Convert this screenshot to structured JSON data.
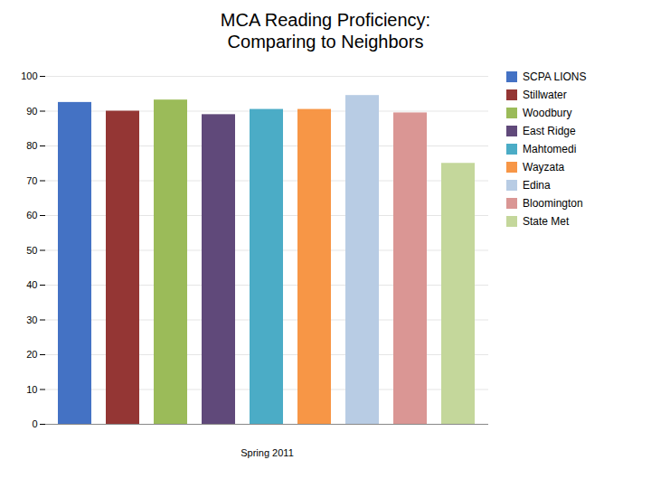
{
  "chart_data": {
    "type": "bar",
    "title": "MCA Reading Proficiency:\nComparing to Neighbors",
    "xlabel": "Spring 2011",
    "categories": [
      "SCPA LIONS",
      "Stillwater",
      "Woodbury",
      "East Ridge",
      "Mahtomedi",
      "Wayzata",
      "Edina",
      "Bloomington",
      "State Met"
    ],
    "values": [
      92.5,
      90.0,
      93.2,
      89.0,
      90.5,
      90.5,
      94.5,
      89.5,
      75.0
    ],
    "colors": [
      "#4472C4",
      "#943634",
      "#9BBB59",
      "#60497A",
      "#4BACC6",
      "#F79646",
      "#B8CCE4",
      "#DA9694",
      "#C4D79B"
    ],
    "ylim": [
      0,
      100
    ],
    "yticks": [
      0,
      10,
      20,
      30,
      40,
      50,
      60,
      70,
      80,
      90,
      100
    ],
    "grid": true,
    "legend": "right",
    "tick_labels": "y"
  }
}
